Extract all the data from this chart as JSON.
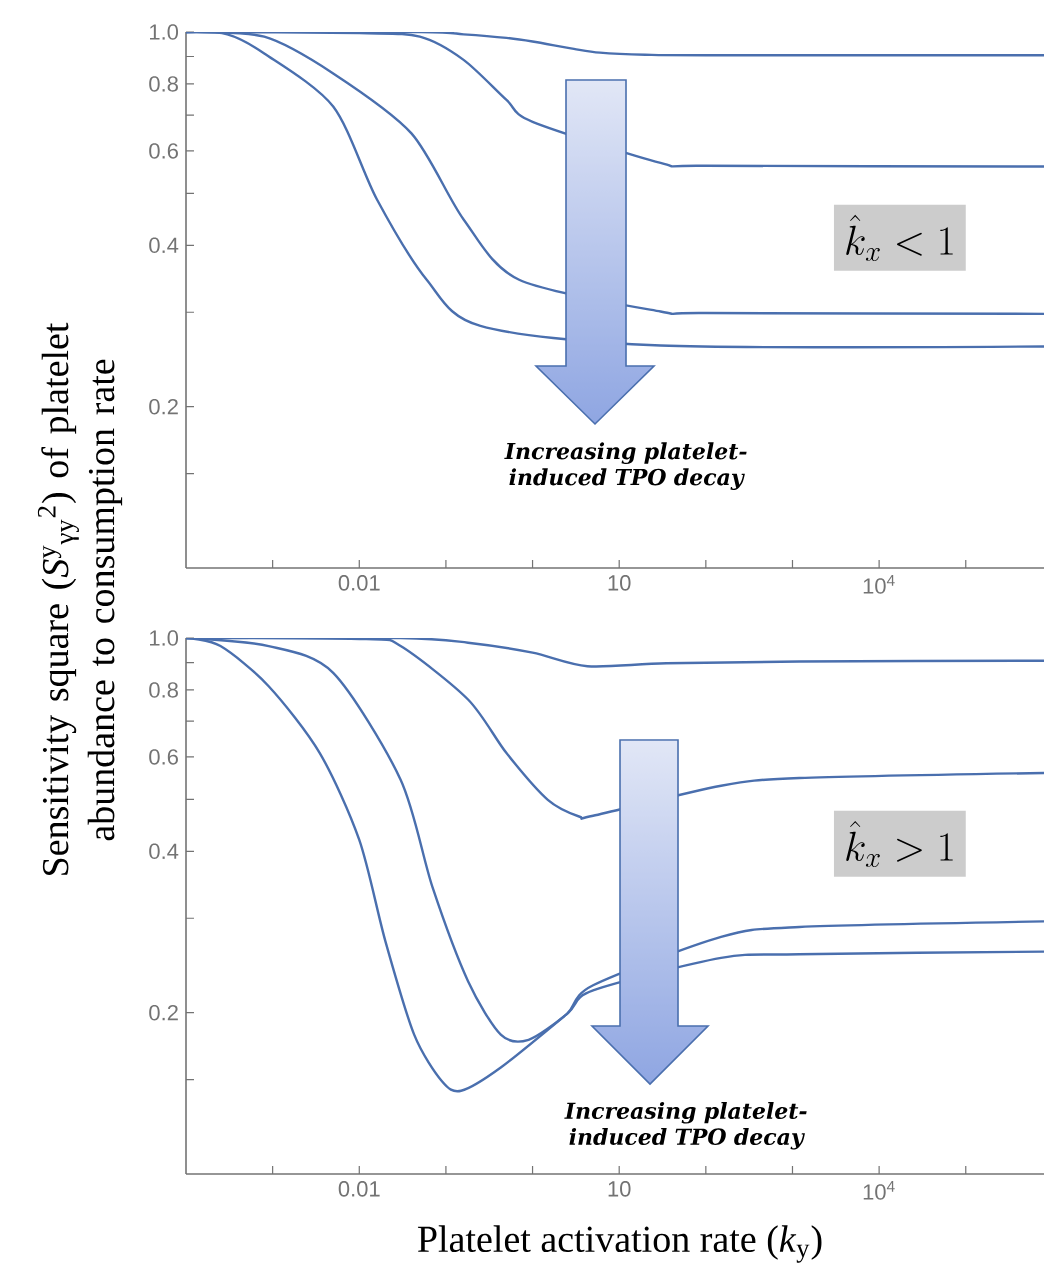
{
  "chart_data": [
    {
      "type": "line",
      "ylabel": "Sensitivity square (*S*$^{y}$$_{γy}$$^{2}$) of platelet abundance to consumption rate",
      "log": "xy",
      "xlim": [
        0.0001,
        800000
      ],
      "ylim": [
        0.1,
        1.0
      ],
      "xticks": [
        {
          "value": 0.001,
          "label": null
        },
        0.01,
        {
          "value": 0.1,
          "label": null
        },
        {
          "value": 1,
          "label": null
        },
        10,
        {
          "value": 100,
          "label": null
        },
        {
          "value": 1000,
          "label": null
        },
        {
          "value": 10000,
          "label": "10$^{4}$"
        },
        {
          "value": 100000,
          "label": null
        }
      ],
      "yticks": [
        {
          "value": 0.15,
          "label": null
        },
        0.2,
        {
          "value": 0.3,
          "label": null
        },
        0.4,
        {
          "value": 0.5,
          "label": null
        },
        0.6,
        {
          "value": 0.7,
          "label": null
        },
        0.8,
        {
          "value": 0.9,
          "label": null
        },
        {
          "value": 1.0,
          "label": "1.0"
        }
      ],
      "series": [
        {
          "color": "#4a6fae",
          "x": [
            0.0001,
            0.05,
            0.16,
            0.5,
            1,
            3,
            6,
            20,
            100,
            800000
          ],
          "values": [
            1.0,
            1.0,
            0.99,
            0.975,
            0.96,
            0.93,
            0.915,
            0.907,
            0.905,
            0.905
          ]
        },
        {
          "color": "#4a6fae",
          "x": [
            0.0001,
            0.01,
            0.05,
            0.16,
            0.5,
            1,
            30,
            100,
            800000
          ],
          "values": [
            1.0,
            0.995,
            0.98,
            0.887,
            0.747,
            0.68,
            0.57,
            0.563,
            0.561
          ]
        },
        {
          "color": "#4a6fae",
          "x": [
            0.0001,
            0.0008,
            0.005,
            0.04,
            0.16,
            0.7,
            30,
            100,
            800000
          ],
          "values": [
            1.0,
            0.98,
            0.837,
            0.647,
            0.447,
            0.345,
            0.301,
            0.299,
            0.298
          ]
        },
        {
          "color": "#4a6fae",
          "x": [
            0.0001,
            0.0003,
            0.0008,
            0.005,
            0.016,
            0.06,
            0.25,
            30,
            800000
          ],
          "values": [
            1.0,
            0.99,
            0.912,
            0.726,
            0.487,
            0.345,
            0.283,
            0.26,
            0.259
          ]
        }
      ],
      "annotations": [
        "Increasing platelet-induced TPO decay",
        "\\hat{k}_x < 1"
      ]
    },
    {
      "type": "line",
      "xlabel": "Platelet activation rate (*k*$_{y}$)",
      "log": "xy",
      "xlim": [
        0.0001,
        800000
      ],
      "ylim": [
        0.1,
        1.0
      ],
      "xticks": [
        {
          "value": 0.001,
          "label": null
        },
        0.01,
        {
          "value": 0.1,
          "label": null
        },
        {
          "value": 1,
          "label": null
        },
        10,
        {
          "value": 100,
          "label": null
        },
        {
          "value": 1000,
          "label": null
        },
        {
          "value": 10000,
          "label": "10$^{4}$"
        },
        {
          "value": 100000,
          "label": null
        }
      ],
      "yticks": [
        {
          "value": 0.15,
          "label": null
        },
        0.2,
        {
          "value": 0.3,
          "label": null
        },
        0.4,
        {
          "value": 0.5,
          "label": null
        },
        0.6,
        {
          "value": 0.7,
          "label": null
        },
        0.8,
        {
          "value": 0.9,
          "label": null
        },
        {
          "value": 1.0,
          "label": "1.0"
        }
      ],
      "series": [
        {
          "color": "#4a6fae",
          "x": [
            0.0001,
            0.03,
            0.18,
            1,
            4.3,
            35,
            1200,
            800000
          ],
          "values": [
            1.0,
            1.0,
            0.98,
            0.939,
            0.886,
            0.897,
            0.904,
            0.907
          ]
        },
        {
          "color": "#4a6fae",
          "x": [
            0.0001,
            0.012,
            0.03,
            0.18,
            0.5,
            1.5,
            3.5,
            5,
            150,
            1200,
            800000
          ],
          "values": [
            1.0,
            0.995,
            0.966,
            0.768,
            0.61,
            0.499,
            0.464,
            0.466,
            0.53,
            0.548,
            0.56
          ]
        },
        {
          "color": "#4a6fae",
          "x": [
            0.0001,
            0.0009,
            0.005,
            0.03,
            0.07,
            0.18,
            0.43,
            0.9,
            2.5,
            5,
            150,
            1200,
            800000
          ],
          "values": [
            1.0,
            0.966,
            0.861,
            0.544,
            0.343,
            0.229,
            0.182,
            0.178,
            0.199,
            0.225,
            0.277,
            0.289,
            0.296
          ]
        },
        {
          "color": "#4a6fae",
          "x": [
            0.0001,
            0.00025,
            0.0009,
            0.0035,
            0.01,
            0.02,
            0.043,
            0.09,
            0.15,
            0.43,
            2.5,
            5,
            150,
            1200,
            800000
          ],
          "values": [
            1.0,
            0.966,
            0.813,
            0.61,
            0.42,
            0.272,
            0.182,
            0.149,
            0.143,
            0.158,
            0.199,
            0.22,
            0.253,
            0.257,
            0.26
          ]
        }
      ],
      "annotations": [
        "Increasing platelet-induced TPO decay",
        "\\hat{k}_x > 1"
      ]
    }
  ]
}
